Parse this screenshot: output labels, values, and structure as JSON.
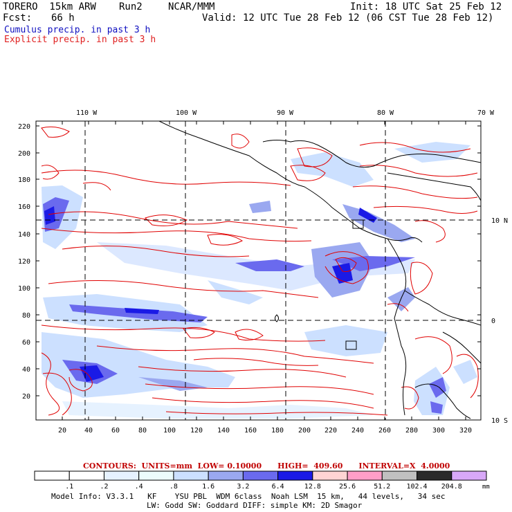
{
  "header": {
    "model": "TORERO  15km ARW",
    "run": "Run2",
    "org": "NCAR/MMM",
    "init": "Init: 18 UTC Sat 25 Feb 12",
    "fcst_label": "Fcst:",
    "fcst_value": "66 h",
    "valid": "Valid: 12 UTC Tue 28 Feb 12 (06 CST Tue 28 Feb 12)",
    "cumulus": "Cumulus precip. in past 3 h",
    "explicit": "Explicit precip. in past 3 h"
  },
  "colors": {
    "cumulus_text": "#1010c0",
    "explicit_text": "#e02020",
    "contour_red": "#e00000",
    "coast": "#000000"
  },
  "map": {
    "lon_labels": [
      "110 W",
      "100 W",
      "90 W",
      "80 W",
      "70 W"
    ],
    "lat_labels": [
      "10 N",
      "0",
      "10 S"
    ],
    "y_ticks": [
      "220",
      "200",
      "180",
      "160",
      "140",
      "120",
      "100",
      "80",
      "60",
      "40",
      "20"
    ],
    "x_ticks": [
      "20",
      "40",
      "60",
      "80",
      "100",
      "120",
      "140",
      "160",
      "180",
      "200",
      "220",
      "240",
      "260",
      "280",
      "300",
      "320"
    ]
  },
  "legend": {
    "contour_info": "CONTOURS:  UNITS=mm  LOW= 0.10000      HIGH=  409.60      INTERVAL=X  4.0000",
    "bins": [
      ".1",
      ".2",
      ".4",
      ".8",
      "1.6",
      "3.2",
      "6.4",
      "12.8",
      "25.6",
      "51.2",
      "102.4",
      "204.8"
    ],
    "unit": "mm",
    "fills": [
      "#ffffff",
      "#ffffff",
      "#e6f2ff",
      "#ecfcfc",
      "#cce0ff",
      "#9aa8f0",
      "#6a6aee",
      "#1a1ae6",
      "#ffd4d4",
      "#ff9ec8",
      "#c0c0c0",
      "#2a2a2a",
      "#d8a8f8"
    ]
  },
  "model_info": {
    "line1": "Model Info: V3.3.1   KF    YSU PBL  WDM 6class  Noah LSM  15 km,   44 levels,   34 sec",
    "line2": "LW: Godd SW: Goddard DIFF: simple KM: 2D Smagor"
  }
}
